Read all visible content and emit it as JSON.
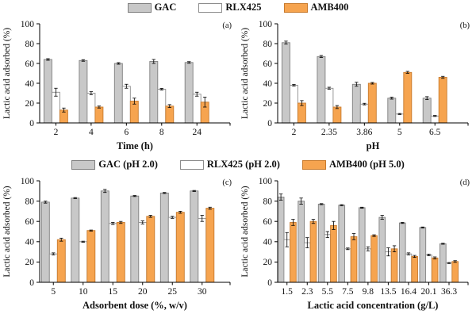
{
  "figure": {
    "background": "#ffffff",
    "axis_color": "#000000"
  },
  "legends": [
    {
      "items": [
        {
          "label": "GAC",
          "fill": "#c8c8c8",
          "border": "#7f7f7f"
        },
        {
          "label": "RLX425",
          "fill": "#ffffff",
          "border": "#8c8c8c"
        },
        {
          "label": "AMB400",
          "fill": "#f6a44f",
          "border": "#c87b2e"
        }
      ]
    },
    {
      "items": [
        {
          "label": "GAC (pH 2.0)",
          "fill": "#c8c8c8",
          "border": "#7f7f7f"
        },
        {
          "label": "RLX425 (pH 2.0)",
          "fill": "#ffffff",
          "border": "#8c8c8c"
        },
        {
          "label": "AMB400 (pH 5.0)",
          "fill": "#f6a44f",
          "border": "#c87b2e"
        }
      ]
    }
  ],
  "chart_data": [
    {
      "id": "a",
      "type": "bar",
      "panel_label": "(a)",
      "xlabel": "Time (h)",
      "ylabel": "Lactic acid adsorbed (%)",
      "ylim": [
        0,
        100
      ],
      "yticks": [
        0,
        20,
        40,
        60,
        80,
        100
      ],
      "grid": false,
      "legend_position": "top-shared",
      "categories": [
        "2",
        "4",
        "6",
        "8",
        "24"
      ],
      "series": [
        {
          "name": "GAC",
          "fill": "#c8c8c8",
          "stroke": "#7f7f7f",
          "values": [
            64,
            63,
            60,
            62,
            61
          ],
          "errors": [
            0.8,
            0.8,
            0.8,
            2,
            0.8
          ]
        },
        {
          "name": "RLX425",
          "fill": "#ffffff",
          "stroke": "#8c8c8c",
          "values": [
            31,
            30,
            37,
            34,
            29
          ],
          "errors": [
            4,
            1.5,
            2,
            0.8,
            2
          ]
        },
        {
          "name": "AMB400",
          "fill": "#f6a44f",
          "stroke": "#c87b2e",
          "values": [
            13,
            16,
            22,
            17,
            21
          ],
          "errors": [
            2,
            1,
            3,
            1.5,
            5
          ]
        }
      ]
    },
    {
      "id": "b",
      "type": "bar",
      "panel_label": "(b)",
      "xlabel": "pH",
      "ylabel": "Lactic acid adsorbed (%)",
      "ylim": [
        0,
        100
      ],
      "yticks": [
        0,
        20,
        40,
        60,
        80,
        100
      ],
      "grid": false,
      "legend_position": "top-shared",
      "categories": [
        "2",
        "2.35",
        "3.86",
        "5",
        "6.5"
      ],
      "series": [
        {
          "name": "GAC",
          "fill": "#c8c8c8",
          "stroke": "#7f7f7f",
          "values": [
            81,
            67,
            39,
            25,
            25
          ],
          "errors": [
            1.5,
            1,
            2,
            1,
            1.5
          ]
        },
        {
          "name": "RLX425",
          "fill": "#ffffff",
          "stroke": "#8c8c8c",
          "values": [
            38,
            35,
            19,
            9,
            7
          ],
          "errors": [
            0.8,
            1,
            0.8,
            0.5,
            0.5
          ]
        },
        {
          "name": "AMB400",
          "fill": "#f6a44f",
          "stroke": "#c87b2e",
          "values": [
            20,
            16,
            40,
            51,
            46
          ],
          "errors": [
            2.5,
            1.5,
            0.8,
            1,
            1
          ]
        }
      ]
    },
    {
      "id": "c",
      "type": "bar",
      "panel_label": "(c)",
      "xlabel": "Adsorbent dose (%, w/v)",
      "ylabel": "Lactic acid adsorbed (%)",
      "ylim": [
        0,
        100
      ],
      "yticks": [
        0,
        20,
        40,
        60,
        80,
        100
      ],
      "grid": false,
      "legend_position": "top-shared",
      "categories": [
        "5",
        "10",
        "15",
        "20",
        "25",
        "30"
      ],
      "series": [
        {
          "name": "GAC (pH 2.0)",
          "fill": "#c8c8c8",
          "stroke": "#7f7f7f",
          "values": [
            79,
            83,
            90,
            85,
            88,
            90
          ],
          "errors": [
            1,
            0.5,
            1.5,
            0.5,
            0.5,
            0.5
          ]
        },
        {
          "name": "RLX425 (pH 2.0)",
          "fill": "#ffffff",
          "stroke": "#8c8c8c",
          "values": [
            28,
            40,
            58,
            59,
            64,
            63
          ],
          "errors": [
            1,
            0.5,
            1,
            1.5,
            1,
            3
          ]
        },
        {
          "name": "AMB400 (pH 5.0)",
          "fill": "#f6a44f",
          "stroke": "#c87b2e",
          "values": [
            42,
            51,
            59,
            65,
            69,
            73
          ],
          "errors": [
            1.5,
            0.5,
            1,
            1,
            1,
            1
          ]
        }
      ]
    },
    {
      "id": "d",
      "type": "bar",
      "panel_label": "(d)",
      "xlabel": "Lactic acid concentration (g/L)",
      "ylabel": "Lactic acid adsorbed (%)",
      "ylim": [
        0,
        100
      ],
      "yticks": [
        0,
        20,
        40,
        60,
        80,
        100
      ],
      "grid": false,
      "legend_position": "top-shared",
      "categories": [
        "1.5",
        "2.3",
        "5.5",
        "7.5",
        "9.8",
        "13.5",
        "16.4",
        "20.1",
        "36.3"
      ],
      "series": [
        {
          "name": "GAC (pH 2.0)",
          "fill": "#c8c8c8",
          "stroke": "#7f7f7f",
          "values": [
            84,
            80,
            77,
            76,
            73.5,
            64,
            58.5,
            54,
            38
          ],
          "errors": [
            3,
            3,
            0.5,
            0.5,
            0.5,
            2,
            0.5,
            0.5,
            0.5
          ]
        },
        {
          "name": "RLX425 (pH 2.0)",
          "fill": "#ffffff",
          "stroke": "#8c8c8c",
          "values": [
            42,
            39,
            47,
            33,
            33,
            30,
            28,
            27,
            19
          ],
          "errors": [
            7,
            5,
            3,
            0.8,
            2,
            4,
            1,
            0.8,
            0.5
          ]
        },
        {
          "name": "AMB400 (pH 5.0)",
          "fill": "#f6a44f",
          "stroke": "#c87b2e",
          "values": [
            59,
            60,
            56,
            45,
            46,
            33,
            25.5,
            24,
            20.5
          ],
          "errors": [
            3,
            2,
            4,
            3,
            0.8,
            3,
            1,
            1,
            0.8
          ]
        }
      ]
    }
  ]
}
